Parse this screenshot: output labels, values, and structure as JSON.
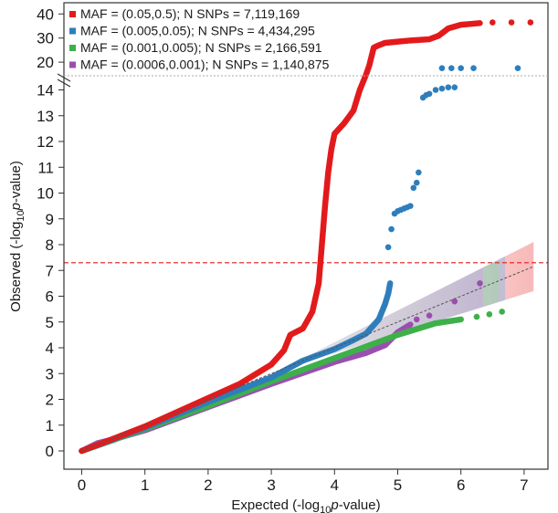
{
  "chart_data": {
    "type": "scatter",
    "subtype": "qq-plot",
    "title": "",
    "xlabel": {
      "pre": "Expected (-log",
      "sub": "10",
      "italic": "p",
      "post": "-value)"
    },
    "ylabel": {
      "pre": "Observed (-log",
      "sub": "10",
      "italic": "p",
      "post": "-value)"
    },
    "xlim": [
      0,
      7.3
    ],
    "x_ticks": [
      "0",
      "1",
      "2",
      "3",
      "4",
      "5",
      "6",
      "7"
    ],
    "y_ticks_lower": [
      "0",
      "1",
      "2",
      "3",
      "4",
      "5",
      "6",
      "7",
      "8",
      "9",
      "10",
      "11",
      "12",
      "13",
      "14"
    ],
    "y_ticks_upper": [
      "20",
      "30",
      "40"
    ],
    "y_axis_break": {
      "lower_range": [
        0,
        15
      ],
      "upper_range": [
        17,
        42
      ]
    },
    "grid": false,
    "legend": {
      "placement": "top-left",
      "entries": [
        {
          "label": "MAF = (0.05,0.5); N SNPs = 7,119,169",
          "color": "#e31a1c"
        },
        {
          "label": "MAF = (0.005,0.05); N SNPs = 4,434,295",
          "color": "#2e7ebc"
        },
        {
          "label": "MAF = (0.001,0.005); N SNPs = 2,166,591",
          "color": "#3db04a"
        },
        {
          "label": "MAF = (0.0006,0.001); N SNPs = 1,140,875",
          "color": "#9a4fb0"
        }
      ]
    },
    "significance_line": {
      "y": 7.3,
      "style": "dashed",
      "color": "#e31a1c"
    },
    "expected_line": {
      "style": "dotted",
      "color": "#555555"
    },
    "series": [
      {
        "color": "#e31a1c",
        "line": [
          [
            0,
            0
          ],
          [
            1,
            0.95
          ],
          [
            2,
            2.05
          ],
          [
            2.5,
            2.6
          ],
          [
            3,
            3.35
          ],
          [
            3.2,
            3.9
          ],
          [
            3.3,
            4.5
          ],
          [
            3.5,
            4.75
          ],
          [
            3.65,
            5.4
          ],
          [
            3.75,
            6.5
          ],
          [
            3.8,
            8
          ],
          [
            3.85,
            9.5
          ],
          [
            3.9,
            10.8
          ],
          [
            3.95,
            11.7
          ],
          [
            4,
            12.3
          ],
          [
            4.15,
            12.7
          ],
          [
            4.3,
            13.2
          ],
          [
            4.4,
            14
          ],
          [
            4.5,
            14.6
          ],
          [
            4.55,
            15.5
          ],
          [
            4.62,
            26
          ],
          [
            4.7,
            27
          ],
          [
            4.8,
            28
          ],
          [
            5.0,
            28.5
          ],
          [
            5.2,
            29
          ],
          [
            5.5,
            29.5
          ],
          [
            5.65,
            31
          ],
          [
            5.8,
            34
          ],
          [
            6.0,
            35.5
          ],
          [
            6.3,
            36.2
          ]
        ],
        "points": [
          [
            6.5,
            36.5
          ],
          [
            6.8,
            36.5
          ],
          [
            7.1,
            36.5
          ]
        ]
      },
      {
        "color": "#2e7ebc",
        "line": [
          [
            0,
            0
          ],
          [
            1,
            0.9
          ],
          [
            2,
            1.9
          ],
          [
            3,
            2.85
          ],
          [
            3.5,
            3.5
          ],
          [
            4,
            3.95
          ],
          [
            4.3,
            4.3
          ],
          [
            4.5,
            4.55
          ],
          [
            4.7,
            5.1
          ],
          [
            4.8,
            5.7
          ],
          [
            4.85,
            6.1
          ],
          [
            4.88,
            6.5
          ]
        ],
        "points": [
          [
            4.85,
            7.9
          ],
          [
            4.9,
            8.6
          ],
          [
            4.95,
            9.2
          ],
          [
            5.0,
            9.3
          ],
          [
            5.05,
            9.35
          ],
          [
            5.1,
            9.4
          ],
          [
            5.15,
            9.45
          ],
          [
            5.2,
            9.5
          ],
          [
            5.25,
            10.2
          ],
          [
            5.3,
            10.4
          ],
          [
            5.33,
            10.8
          ],
          [
            5.4,
            13.7
          ],
          [
            5.45,
            13.8
          ],
          [
            5.5,
            13.85
          ],
          [
            5.6,
            14.0
          ],
          [
            5.7,
            14.05
          ],
          [
            5.8,
            14.1
          ],
          [
            5.9,
            14.1
          ],
          [
            5.7,
            17.5
          ],
          [
            5.85,
            17.5
          ],
          [
            6.0,
            17.5
          ],
          [
            6.2,
            17.5
          ],
          [
            6.9,
            17.5
          ]
        ]
      },
      {
        "color": "#3db04a",
        "line": [
          [
            0,
            0
          ],
          [
            1,
            0.85
          ],
          [
            2,
            1.75
          ],
          [
            3,
            2.7
          ],
          [
            4,
            3.6
          ],
          [
            5,
            4.5
          ],
          [
            5.6,
            4.95
          ],
          [
            6,
            5.1
          ]
        ],
        "points": [
          [
            6.25,
            5.2
          ],
          [
            6.45,
            5.3
          ],
          [
            6.65,
            5.4
          ]
        ]
      },
      {
        "color": "#9a4fb0",
        "line": [
          [
            0,
            0
          ],
          [
            0.25,
            0.3
          ],
          [
            0.5,
            0.45
          ],
          [
            1,
            0.8
          ],
          [
            2,
            1.7
          ],
          [
            3,
            2.6
          ],
          [
            4,
            3.45
          ],
          [
            4.5,
            3.8
          ],
          [
            4.8,
            4.1
          ],
          [
            5.0,
            4.6
          ],
          [
            5.2,
            4.9
          ]
        ],
        "points": [
          [
            5.3,
            5.1
          ],
          [
            5.5,
            5.25
          ],
          [
            5.9,
            5.8
          ],
          [
            6.3,
            6.5
          ]
        ]
      }
    ]
  }
}
